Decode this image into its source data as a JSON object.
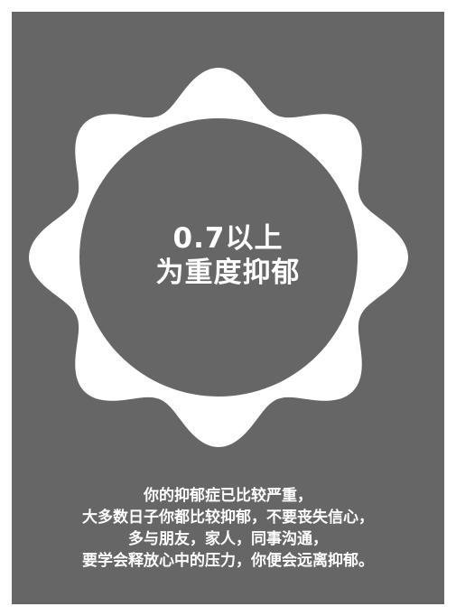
{
  "headline": {
    "line1": "0.7以上",
    "line2": "为重度抑郁"
  },
  "message": {
    "lines": [
      "你的抑郁症已比较严重，",
      "大多数日子你都比较抑郁，不要丧失信心，",
      "多与朋友，家人，同事沟通，",
      "要学会释放心中的压力，你便会远离抑郁。"
    ]
  },
  "colors": {
    "background": "#ffffff",
    "card": "#666666",
    "badge": "#ffffff",
    "text": "#ffffff"
  }
}
